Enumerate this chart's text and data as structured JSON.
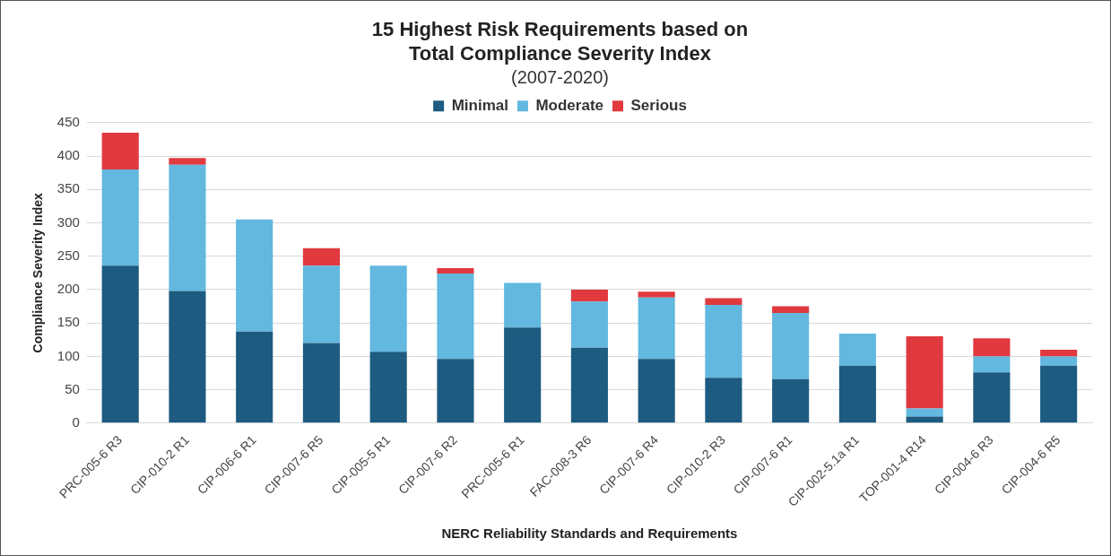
{
  "chart_data": {
    "type": "bar",
    "title": "15 Highest Risk Requirements based on Total Compliance Severity Index",
    "subtitle": "(2007-2020)",
    "xlabel": "NERC Reliability Standards and Requirements",
    "ylabel": "Compliance Severity Index",
    "categories": [
      "PRC-005-6 R3",
      "CIP-010-2 R1",
      "CIP-006-6 R1",
      "CIP-007-6 R5",
      "CIP-005-5 R1",
      "CIP-007-6 R2",
      "PRC-005-6 R1",
      "FAC-008-3 R6",
      "CIP-007-6 R4",
      "CIP-010-2 R3",
      "CIP-007-6 R1",
      "CIP-002-5.1a R1",
      "TOP-001-4 R14",
      "CIP-004-6 R3",
      "CIP-004-6 R5"
    ],
    "series": [
      {
        "name": "Minimal",
        "color": "#1d5b80",
        "values": [
          236,
          198,
          137,
          120,
          107,
          96,
          143,
          113,
          96,
          68,
          66,
          86,
          10,
          76,
          86
        ]
      },
      {
        "name": "Moderate",
        "color": "#62b8df",
        "values": [
          144,
          189,
          168,
          116,
          129,
          128,
          67,
          69,
          92,
          109,
          99,
          48,
          12,
          24,
          14
        ]
      },
      {
        "name": "Serious",
        "color": "#e0393e",
        "values": [
          55,
          10,
          0,
          26,
          0,
          8,
          0,
          18,
          9,
          10,
          10,
          0,
          108,
          27,
          10
        ]
      }
    ],
    "stacked": true,
    "ylim": [
      0,
      450
    ],
    "yticks": [
      0,
      50,
      100,
      150,
      200,
      250,
      300,
      350,
      400,
      450
    ],
    "grid": "y",
    "legend": "top"
  }
}
